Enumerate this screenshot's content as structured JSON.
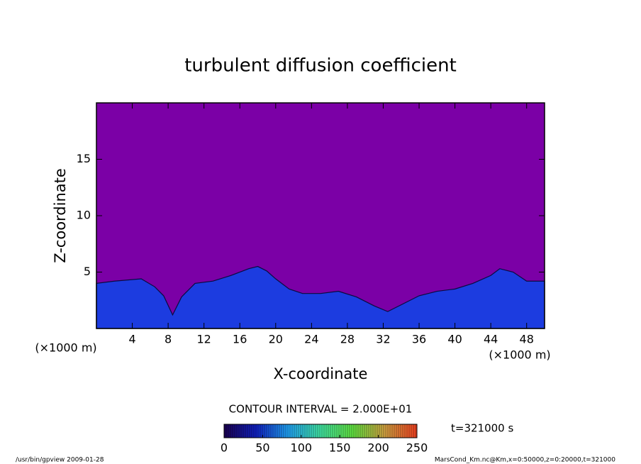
{
  "chart_data": {
    "type": "contour",
    "title": "turbulent diffusion coefficient",
    "xlabel": "X-coordinate",
    "ylabel": "Z-coordinate",
    "xunit": "(×1000 m)",
    "yunit": "(×1000 m)",
    "xlim": [
      0,
      50
    ],
    "xticks": [
      4,
      8,
      12,
      16,
      20,
      24,
      28,
      32,
      36,
      40,
      44,
      48
    ],
    "ylim": [
      0,
      20
    ],
    "yticks": [
      5,
      10,
      15
    ],
    "background_color": "#7b00a6",
    "layer_color": "#1c3ce0",
    "layer_top": {
      "x": [
        0,
        2,
        5,
        6.5,
        7.5,
        8.5,
        9.5,
        11,
        13,
        15,
        17,
        18,
        19,
        20,
        21.5,
        23,
        25,
        27,
        29,
        31,
        32.5,
        34,
        36,
        38,
        40,
        42,
        44,
        45,
        46.5,
        48,
        50
      ],
      "z": [
        4.0,
        4.2,
        4.4,
        3.7,
        2.9,
        1.2,
        2.8,
        4.0,
        4.2,
        4.7,
        5.3,
        5.5,
        5.1,
        4.4,
        3.5,
        3.1,
        3.1,
        3.3,
        2.8,
        2.0,
        1.5,
        2.1,
        2.9,
        3.3,
        3.5,
        4.0,
        4.7,
        5.3,
        5.0,
        4.2,
        4.2
      ]
    },
    "contour_interval": "CONTOUR INTERVAL = 2.000E+01",
    "time_label": "t=321000 s",
    "colorbar": {
      "lim": [
        0,
        250
      ],
      "ticks": [
        0,
        50,
        100,
        150,
        200,
        250
      ],
      "colors": [
        "#1a0050",
        "#1020c0",
        "#20a0f0",
        "#40e0a0",
        "#60e040",
        "#d0a040",
        "#f04020"
      ]
    },
    "footer_left": "/usr/bin/gpview  2009-01-28",
    "footer_right": "MarsCond_Km.nc@Km,x=0:50000,z=0:20000,t=321000"
  }
}
